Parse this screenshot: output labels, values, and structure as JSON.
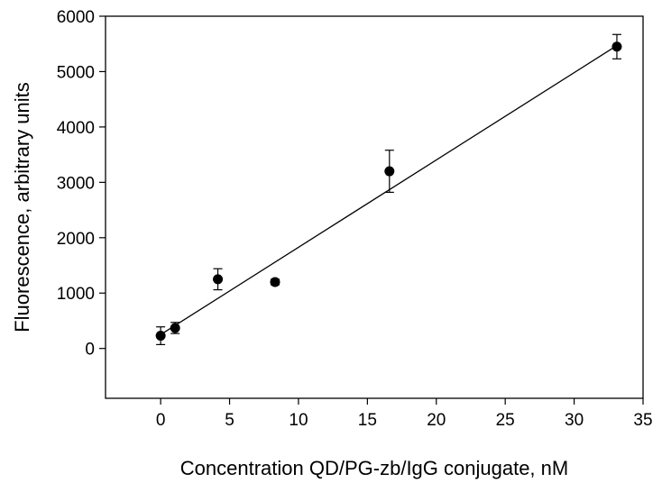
{
  "chart_data": {
    "type": "scatter",
    "title": "",
    "xlabel": "Concentration QD/PG-zb/IgG conjugate, nM",
    "ylabel": "Fluorescence, arbitrary units",
    "xlim": [
      -4,
      35
    ],
    "ylim": [
      -900,
      6000
    ],
    "x_ticks": [
      0,
      5,
      10,
      15,
      20,
      25,
      30,
      35
    ],
    "y_ticks": [
      0,
      1000,
      2000,
      3000,
      4000,
      5000,
      6000
    ],
    "grid": false,
    "legend": "none",
    "series": [
      {
        "points": [
          {
            "x": 0,
            "y": 230,
            "err": 160
          },
          {
            "x": 1.05,
            "y": 370,
            "err": 100
          },
          {
            "x": 4.15,
            "y": 1250,
            "err": 190
          },
          {
            "x": 8.3,
            "y": 1200,
            "err": 50
          },
          {
            "x": 16.6,
            "y": 3200,
            "err": 380
          },
          {
            "x": 33.1,
            "y": 5450,
            "err": 220
          }
        ],
        "color": "#000000"
      }
    ],
    "fit_line": {
      "x": [
        0,
        33.1
      ],
      "y": [
        250,
        5470
      ]
    }
  }
}
